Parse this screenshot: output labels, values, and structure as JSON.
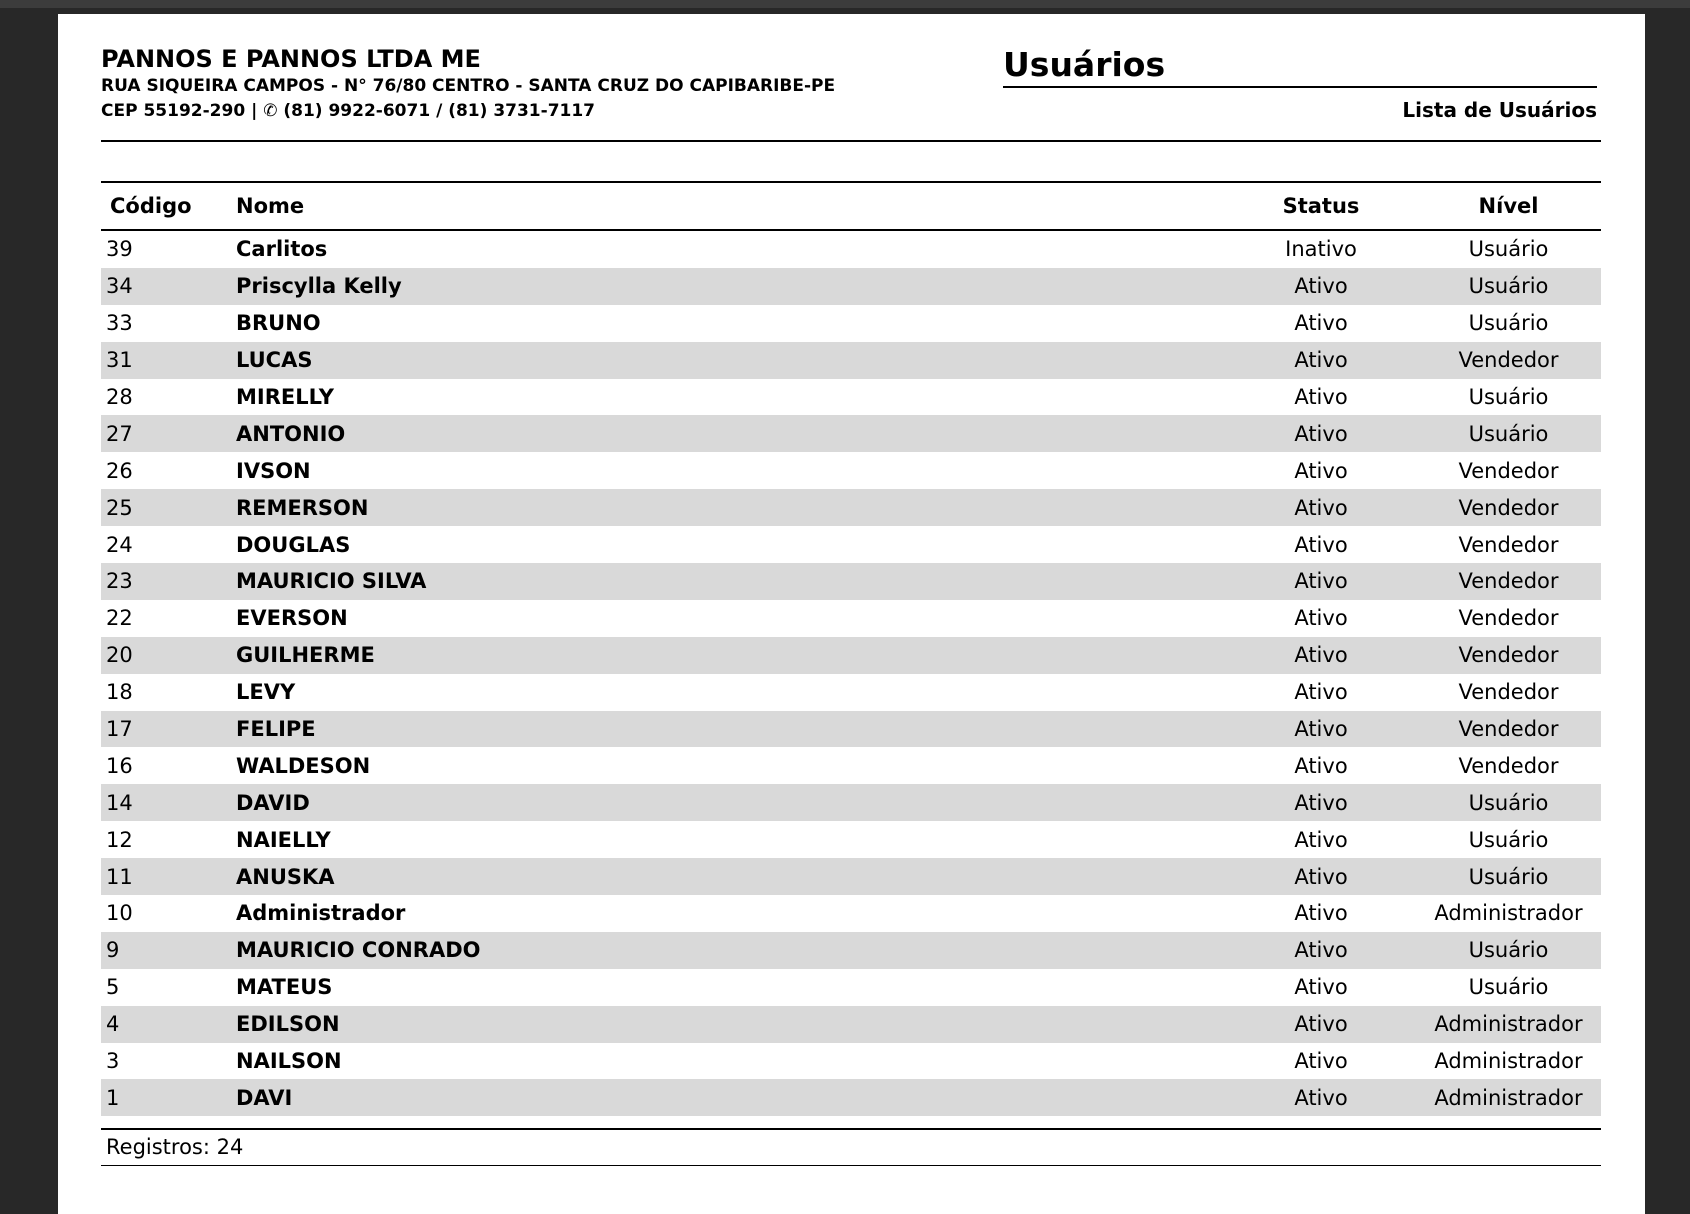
{
  "company": {
    "name": "PANNOS E PANNOS LTDA ME",
    "address": "RUA SIQUEIRA CAMPOS - N° 76/80 CENTRO - SANTA CRUZ DO CAPIBARIBE-PE",
    "contact": "CEP 55192-290  | ✆ (81) 9922-6071 / (81) 3731-7117"
  },
  "report": {
    "title": "Usuários",
    "subtitle": "Lista de Usuários"
  },
  "table": {
    "headers": [
      "Código",
      "Nome",
      "Status",
      "Nível"
    ],
    "rows": [
      [
        "39",
        "Carlitos",
        "Inativo",
        "Usuário"
      ],
      [
        "34",
        "Priscylla Kelly",
        "Ativo",
        "Usuário"
      ],
      [
        "33",
        "BRUNO",
        "Ativo",
        "Usuário"
      ],
      [
        "31",
        "LUCAS",
        "Ativo",
        "Vendedor"
      ],
      [
        "28",
        "MIRELLY",
        "Ativo",
        "Usuário"
      ],
      [
        "27",
        "ANTONIO",
        "Ativo",
        "Usuário"
      ],
      [
        "26",
        "IVSON",
        "Ativo",
        "Vendedor"
      ],
      [
        "25",
        "REMERSON",
        "Ativo",
        "Vendedor"
      ],
      [
        "24",
        "DOUGLAS",
        "Ativo",
        "Vendedor"
      ],
      [
        "23",
        "MAURICIO SILVA",
        "Ativo",
        "Vendedor"
      ],
      [
        "22",
        "EVERSON",
        "Ativo",
        "Vendedor"
      ],
      [
        "20",
        "GUILHERME",
        "Ativo",
        "Vendedor"
      ],
      [
        "18",
        "LEVY",
        "Ativo",
        "Vendedor"
      ],
      [
        "17",
        "FELIPE",
        "Ativo",
        "Vendedor"
      ],
      [
        "16",
        "WALDESON",
        "Ativo",
        "Vendedor"
      ],
      [
        "14",
        "DAVID",
        "Ativo",
        "Usuário"
      ],
      [
        "12",
        "NAIELLY",
        "Ativo",
        "Usuário"
      ],
      [
        "11",
        "ANUSKA",
        "Ativo",
        "Usuário"
      ],
      [
        "10",
        "Administrador",
        "Ativo",
        "Administrador"
      ],
      [
        "9",
        "MAURICIO CONRADO",
        "Ativo",
        "Usuário"
      ],
      [
        "5",
        "MATEUS",
        "Ativo",
        "Usuário"
      ],
      [
        "4",
        "EDILSON",
        "Ativo",
        "Administrador"
      ],
      [
        "3",
        "NAILSON",
        "Ativo",
        "Administrador"
      ],
      [
        "1",
        "DAVI",
        "Ativo",
        "Administrador"
      ]
    ]
  },
  "footer": {
    "records": "Registros: 24"
  },
  "colors": {
    "stripe": "#d9d9d9",
    "background": "#282828"
  }
}
